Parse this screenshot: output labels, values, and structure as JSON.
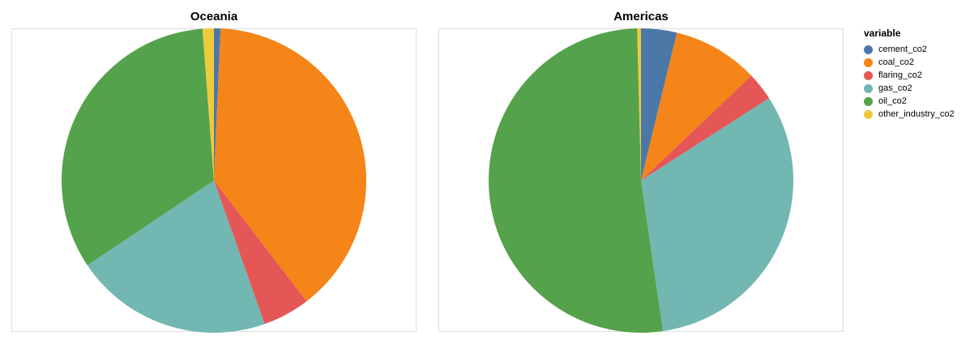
{
  "legend": {
    "title": "variable",
    "items": [
      {
        "label": "cement_co2",
        "color": "#4c78a8"
      },
      {
        "label": "coal_co2",
        "color": "#f58518"
      },
      {
        "label": "flaring_co2",
        "color": "#e45756"
      },
      {
        "label": "gas_co2",
        "color": "#72b7b2"
      },
      {
        "label": "oil_co2",
        "color": "#54a24b"
      },
      {
        "label": "other_industry_co2",
        "color": "#eeca3b"
      }
    ]
  },
  "chart_data": [
    {
      "type": "pie",
      "title": "Oceania",
      "categories": [
        "cement_co2",
        "coal_co2",
        "flaring_co2",
        "gas_co2",
        "oil_co2",
        "other_industry_co2"
      ],
      "values": [
        0.7,
        38.9,
        5.0,
        21.0,
        33.2,
        1.2
      ],
      "colors": [
        "#4c78a8",
        "#f58518",
        "#e45756",
        "#72b7b2",
        "#54a24b",
        "#eeca3b"
      ]
    },
    {
      "type": "pie",
      "title": "Americas",
      "categories": [
        "cement_co2",
        "coal_co2",
        "flaring_co2",
        "gas_co2",
        "oil_co2",
        "other_industry_co2"
      ],
      "values": [
        3.8,
        9.1,
        3.0,
        31.8,
        51.9,
        0.4
      ],
      "colors": [
        "#4c78a8",
        "#f58518",
        "#e45756",
        "#72b7b2",
        "#54a24b",
        "#eeca3b"
      ]
    }
  ]
}
